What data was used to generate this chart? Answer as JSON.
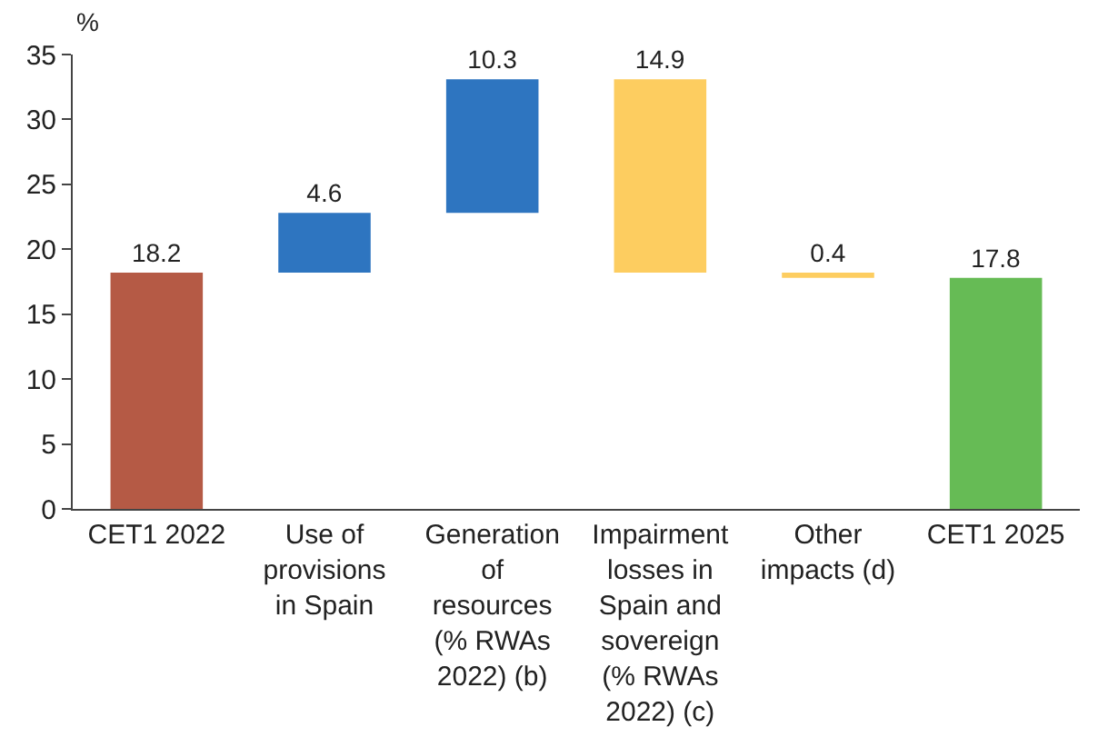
{
  "chart_data": {
    "type": "bar",
    "ylabel": "%",
    "categories": [
      "CET1 2022",
      "Use of provisions in Spain",
      "Generation of resources (% RWAs 2022) (b)",
      "Impairment losses in Spain and sovereign (% RWAs 2022) (c)",
      "Other impacts (d)",
      "CET1 2025"
    ],
    "values": [
      18.2,
      4.6,
      10.3,
      14.9,
      0.4,
      17.8
    ],
    "base": [
      0,
      18.2,
      22.8,
      18.2,
      17.8,
      0
    ],
    "colors": [
      "#b55a45",
      "#2e75c0",
      "#2e75c0",
      "#fdcd60",
      "#fdcd60",
      "#66bb55"
    ],
    "ylim": [
      0,
      35
    ],
    "yticks": [
      0,
      5,
      10,
      15,
      20,
      25,
      30,
      35
    ],
    "data_labels": true
  }
}
